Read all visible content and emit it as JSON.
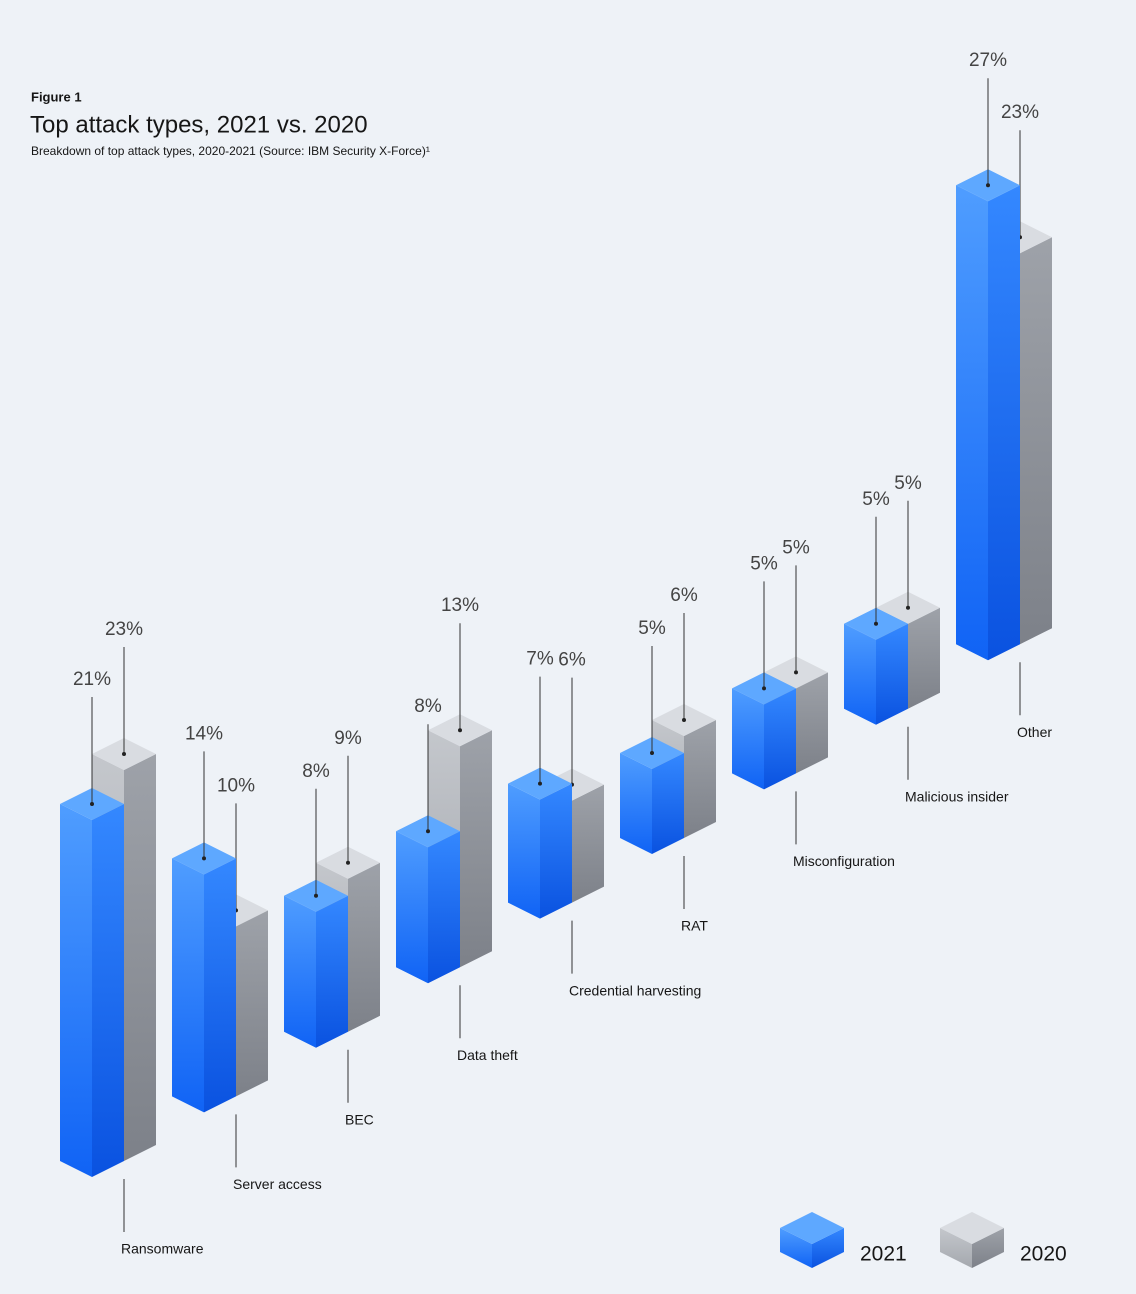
{
  "chart_data": {
    "type": "isometric-bar",
    "figure_label": "Figure 1",
    "title": "Top attack types, 2021 vs. 2020",
    "subtitle": "Breakdown of top attack types, 2020-2021 (Source: IBM Security X-Force)¹",
    "categories": [
      "Ransomware",
      "Server access",
      "BEC",
      "Data theft",
      "Credential harvesting",
      "RAT",
      "Misconfiguration",
      "Malicious insider",
      "Other"
    ],
    "series": [
      {
        "name": "2021",
        "color": "#1f70ff",
        "values": [
          21,
          14,
          8,
          8,
          7,
          5,
          5,
          5,
          27
        ],
        "value_labels": [
          "21%",
          "14%",
          "8%",
          "8%",
          "7%",
          "5%",
          "5%",
          "5%",
          "27%"
        ]
      },
      {
        "name": "2020",
        "color": "#a8acb3",
        "values": [
          23,
          10,
          9,
          13,
          6,
          6,
          5,
          5,
          23
        ],
        "value_labels": [
          "23%",
          "10%",
          "9%",
          "13%",
          "6%",
          "6%",
          "5%",
          "5%",
          "23%"
        ]
      }
    ]
  }
}
